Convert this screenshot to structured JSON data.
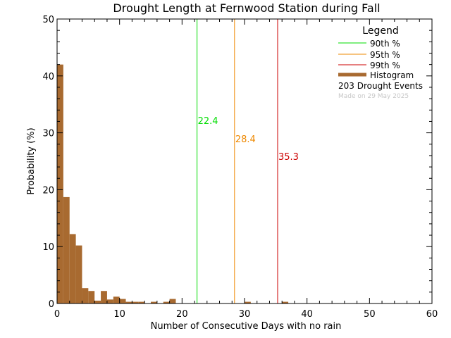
{
  "chart_data": {
    "type": "bar",
    "title": "Drought Length at Fernwood Station during Fall",
    "xlabel": "Number of Consecutive Days with no rain",
    "ylabel": "Probability (%)",
    "xlim": [
      0,
      60
    ],
    "ylim": [
      0,
      50
    ],
    "xticks": [
      0,
      10,
      20,
      30,
      40,
      50,
      60
    ],
    "yticks": [
      0,
      10,
      20,
      30,
      40,
      50
    ],
    "bin_width": 1,
    "histogram": {
      "name": "Histogram",
      "color": "#a86a30",
      "bins": [
        {
          "x": 0,
          "value": 42.0
        },
        {
          "x": 1,
          "value": 18.7
        },
        {
          "x": 2,
          "value": 12.2
        },
        {
          "x": 3,
          "value": 10.2
        },
        {
          "x": 4,
          "value": 2.7
        },
        {
          "x": 5,
          "value": 2.2
        },
        {
          "x": 6,
          "value": 0.5
        },
        {
          "x": 7,
          "value": 2.2
        },
        {
          "x": 8,
          "value": 0.7
        },
        {
          "x": 9,
          "value": 1.2
        },
        {
          "x": 10,
          "value": 0.8
        },
        {
          "x": 11,
          "value": 0.3
        },
        {
          "x": 12,
          "value": 0.3
        },
        {
          "x": 13,
          "value": 0.3
        },
        {
          "x": 15,
          "value": 0.3
        },
        {
          "x": 17,
          "value": 0.3
        },
        {
          "x": 18,
          "value": 0.8
        },
        {
          "x": 30,
          "value": 0.3
        },
        {
          "x": 36,
          "value": 0.3
        }
      ]
    },
    "percentiles": [
      {
        "name": "90th %",
        "value": 22.4,
        "label": "22.4",
        "color": "#00dd00"
      },
      {
        "name": "95th %",
        "value": 28.4,
        "label": "28.4",
        "color": "#ee8800"
      },
      {
        "name": "99th %",
        "value": 35.3,
        "label": "35.3",
        "color": "#cc0000"
      }
    ],
    "legend": {
      "title": "Legend",
      "position": "top-right",
      "events_text": "203 Drought Events",
      "credit": "Made on 29 May 2025"
    }
  }
}
